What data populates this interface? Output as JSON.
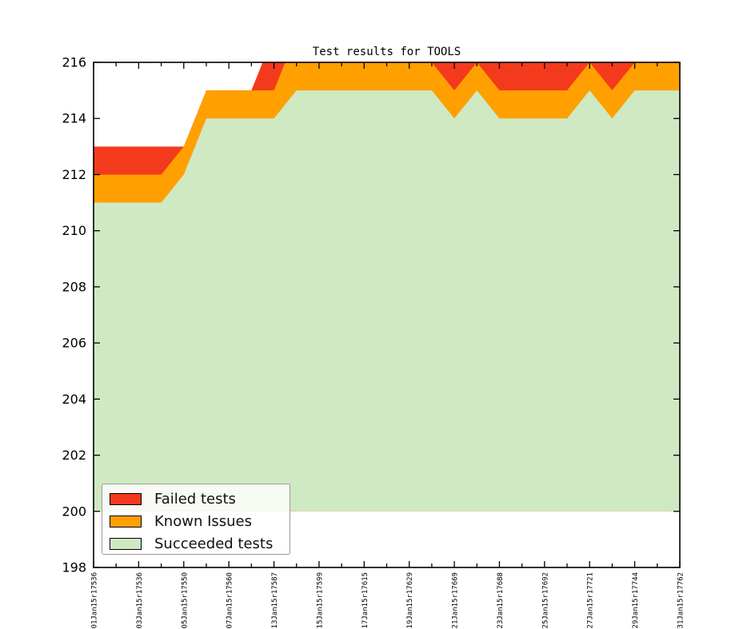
{
  "colors": {
    "failed": "#f43a1c",
    "known": "#ffa000",
    "succeeded": "#cfe9c3",
    "axis": "#000000",
    "legend_border": "#9a9a9a",
    "background": "#ffffff"
  },
  "legend": {
    "items": [
      {
        "label": "Failed tests",
        "color": "#f43a1c"
      },
      {
        "label": "Known Issues",
        "color": "#ffa000"
      },
      {
        "label": "Succeeded tests",
        "color": "#cfe9c3"
      }
    ]
  },
  "chart_data": {
    "type": "area",
    "stacked": true,
    "title": "Test results for TOOLS",
    "xlabel": "",
    "ylabel": "",
    "ylim": [
      198,
      216
    ],
    "y_ticks": [
      198,
      200,
      202,
      204,
      206,
      208,
      210,
      212,
      214,
      216
    ],
    "baseline": 200,
    "grid": false,
    "legend_position": "lower left",
    "x_tick_labels": [
      "01Jan15r17536",
      "",
      "03Jan15r17536",
      "",
      "05Jan15r17550",
      "",
      "07Jan15r17560",
      "",
      "13Jan15r17587",
      "",
      "15Jan15r17599",
      "",
      "17Jan15r17615",
      "",
      "19Jan15r17629",
      "",
      "21Jan15r17669",
      "",
      "23Jan15r17688",
      "",
      "25Jan15r17692",
      "",
      "27Jan15r17721",
      "",
      "29Jan15r17744",
      "",
      "31Jan15r17762"
    ],
    "series": [
      {
        "name": "Succeeded tests",
        "color": "#cfe9c3",
        "values": [
          211,
          211,
          211,
          211,
          212,
          214,
          214,
          214,
          214,
          215,
          215,
          215,
          215,
          215,
          215,
          215,
          214,
          215,
          214,
          214,
          214,
          214,
          215,
          214,
          215,
          215,
          215
        ]
      },
      {
        "name": "Known Issues",
        "color": "#ffa000",
        "values": [
          1,
          1,
          1,
          1,
          1,
          1,
          1,
          1,
          1,
          2,
          1,
          1,
          1,
          1,
          1,
          1,
          1,
          1,
          1,
          1,
          1,
          1,
          1,
          1,
          1,
          1,
          1
        ]
      },
      {
        "name": "Failed tests",
        "color": "#f43a1c",
        "values": [
          1,
          1,
          1,
          1,
          0,
          0,
          0,
          0,
          2,
          0,
          0,
          0,
          0,
          0,
          0,
          0,
          1,
          0,
          1,
          1,
          1,
          1,
          0,
          1,
          0,
          0,
          0
        ]
      }
    ]
  }
}
